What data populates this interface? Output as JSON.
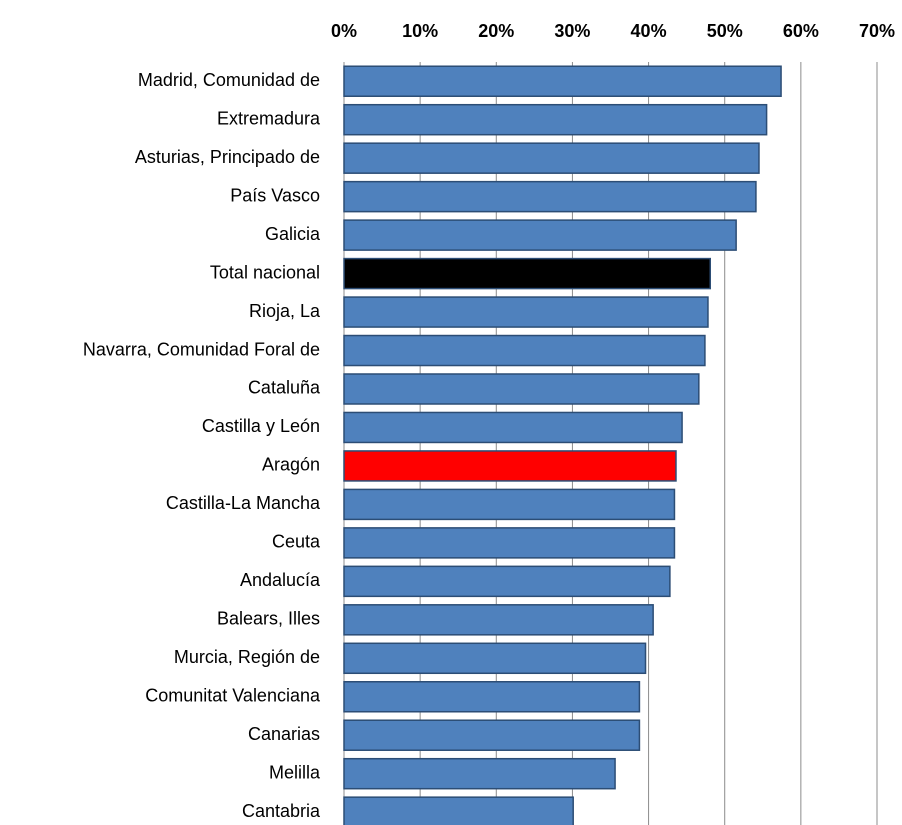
{
  "chart_data": {
    "type": "barh",
    "categories": [
      "Madrid, Comunidad de",
      "Extremadura",
      "Asturias, Principado de",
      "País Vasco",
      "Galicia",
      "Total nacional",
      "Rioja, La",
      "Navarra, Comunidad Foral de",
      "Cataluña",
      "Castilla y León",
      "Aragón",
      "Castilla-La Mancha",
      "Ceuta",
      "Andalucía",
      "Balears, Illes",
      "Murcia, Región de",
      "Comunitat Valenciana",
      "Canarias",
      "Melilla",
      "Cantabria"
    ],
    "values": [
      57.4,
      55.5,
      54.5,
      54.1,
      51.5,
      48.1,
      47.8,
      47.4,
      46.6,
      44.4,
      43.6,
      43.4,
      43.4,
      42.8,
      40.6,
      39.6,
      38.8,
      38.8,
      35.6,
      30.1
    ],
    "colors": [
      "#4f81bd",
      "#4f81bd",
      "#4f81bd",
      "#4f81bd",
      "#4f81bd",
      "#000000",
      "#4f81bd",
      "#4f81bd",
      "#4f81bd",
      "#4f81bd",
      "#ff0000",
      "#4f81bd",
      "#4f81bd",
      "#4f81bd",
      "#4f81bd",
      "#4f81bd",
      "#4f81bd",
      "#4f81bd",
      "#4f81bd",
      "#4f81bd"
    ],
    "xlim": [
      0,
      70
    ],
    "xticks": [
      {
        "value": 0,
        "label": "0%"
      },
      {
        "value": 10,
        "label": "10%"
      },
      {
        "value": 20,
        "label": "20%"
      },
      {
        "value": 30,
        "label": "30%"
      },
      {
        "value": 40,
        "label": "40%"
      },
      {
        "value": 50,
        "label": "50%"
      },
      {
        "value": 60,
        "label": "60%"
      },
      {
        "value": 70,
        "label": "70%"
      }
    ],
    "grid": true
  }
}
